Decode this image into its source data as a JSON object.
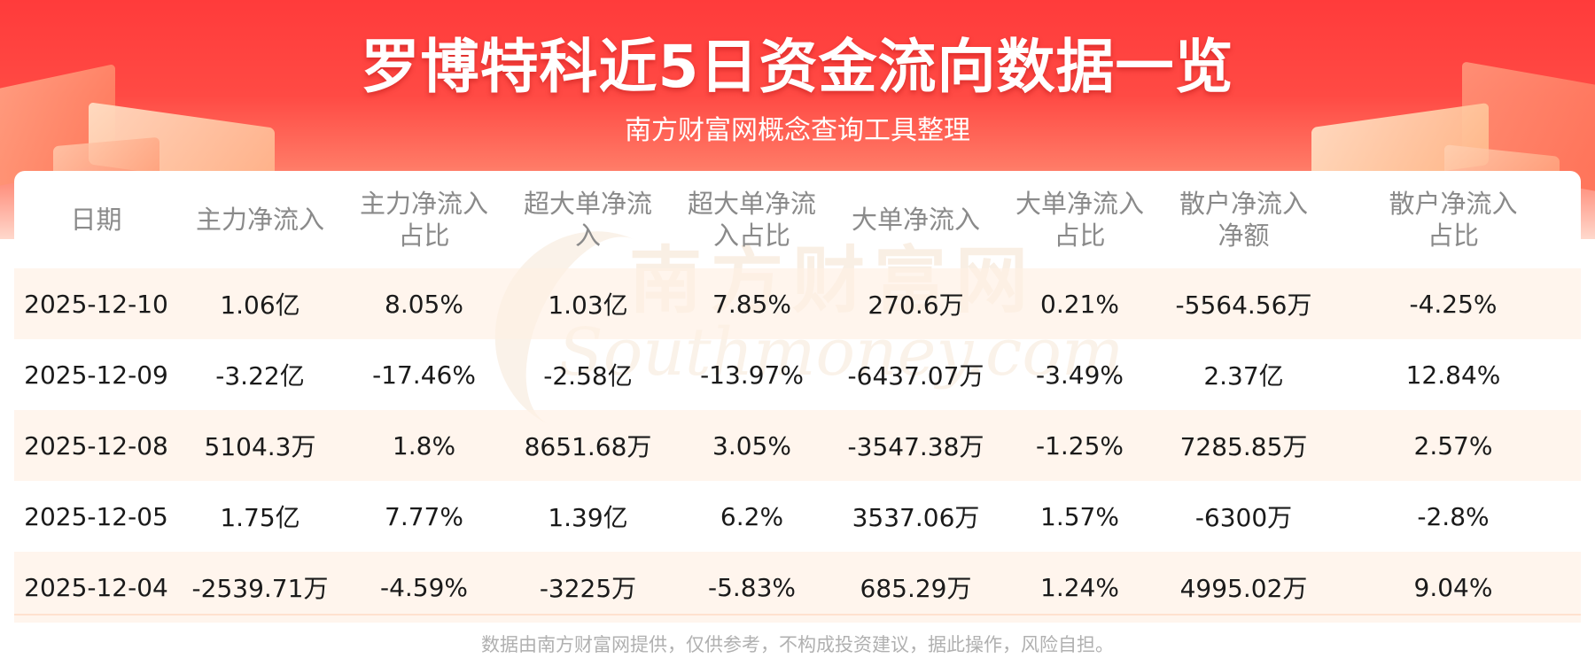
{
  "header": {
    "title": "罗博特科近5日资金流向数据一览",
    "subtitle": "南方财富网概念查询工具整理"
  },
  "table": {
    "columns": [
      "日期",
      "主力净流入",
      "主力净流入占比",
      "超大单净流入",
      "超大单净流入占比",
      "大单净流入",
      "大单净流入占比",
      "散户净流入净额",
      "散户净流入占比"
    ],
    "rows": [
      [
        "2025-12-10",
        "1.06亿",
        "8.05%",
        "1.03亿",
        "7.85%",
        "270.6万",
        "0.21%",
        "-5564.56万",
        "-4.25%"
      ],
      [
        "2025-12-09",
        "-3.22亿",
        "-17.46%",
        "-2.58亿",
        "-13.97%",
        "-6437.07万",
        "-3.49%",
        "2.37亿",
        "12.84%"
      ],
      [
        "2025-12-08",
        "5104.3万",
        "1.8%",
        "8651.68万",
        "3.05%",
        "-3547.38万",
        "-1.25%",
        "7285.85万",
        "2.57%"
      ],
      [
        "2025-12-05",
        "1.75亿",
        "7.77%",
        "1.39亿",
        "6.2%",
        "3537.06万",
        "1.57%",
        "-6300万",
        "-2.8%"
      ],
      [
        "2025-12-04",
        "-2539.71万",
        "-4.59%",
        "-3225万",
        "-5.83%",
        "685.29万",
        "1.24%",
        "4995.02万",
        "9.04%"
      ]
    ]
  },
  "watermark": {
    "cn": "南方财富网",
    "en": "Southmoney.com"
  },
  "footer": {
    "disclaimer": "数据由南方财富网提供，仅供参考，不构成投资建议，据此操作，风险自担。"
  },
  "colors": {
    "banner_red": "#ff3b3b",
    "row_highlight": "#fff0e4",
    "header_text": "#8a8a8a"
  }
}
